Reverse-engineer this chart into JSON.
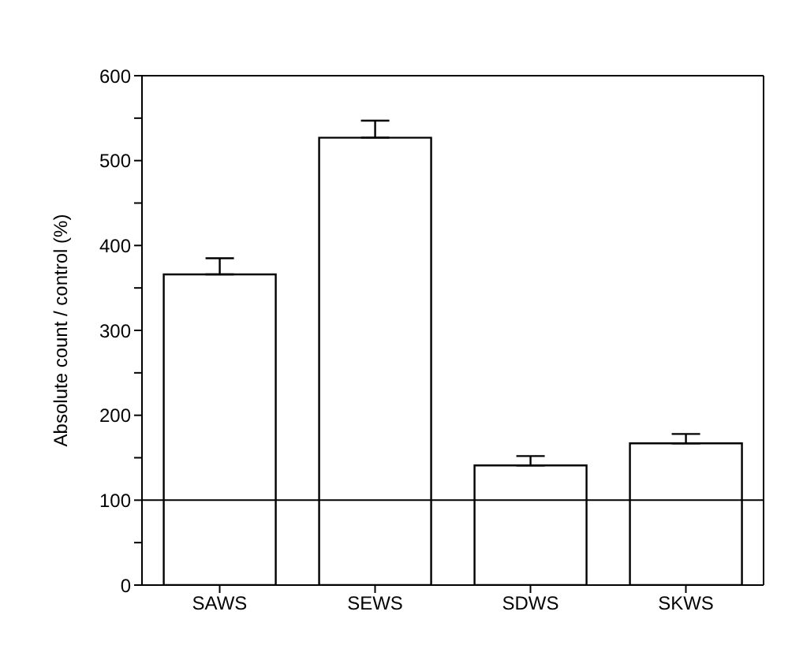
{
  "chart_data": {
    "type": "bar",
    "ylabel": "Absolute count / control (%)",
    "categories": [
      "SAWS",
      "SEWS",
      "SDWS",
      "SKWS"
    ],
    "values": [
      366,
      527,
      141,
      167
    ],
    "errors": [
      [
        366,
        385
      ],
      [
        527,
        547
      ],
      [
        141,
        152
      ],
      [
        167,
        178
      ]
    ],
    "color": "#ffffff",
    "ylim": [
      0,
      600
    ],
    "yticks": [
      0,
      {
        "value": 50,
        "label": null
      },
      100,
      {
        "value": 150,
        "label": null
      },
      200,
      {
        "value": 250,
        "label": null
      },
      300,
      {
        "value": 350,
        "label": null
      },
      400,
      {
        "value": 450,
        "label": null
      },
      500,
      {
        "value": 550,
        "label": null
      },
      600
    ],
    "ref_lines": [
      {
        "axis": "y",
        "value": 100,
        "color": "#000000"
      }
    ],
    "grid": false,
    "legend": false
  }
}
